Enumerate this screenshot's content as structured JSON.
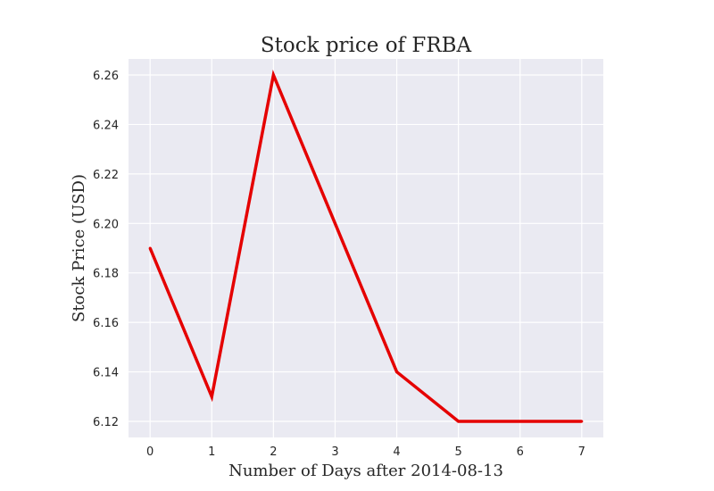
{
  "chart_data": {
    "type": "line",
    "title": "Stock price of FRBA",
    "xlabel": "Number of Days after 2014-08-13",
    "ylabel": "Stock Price (USD)",
    "x": [
      0,
      1,
      2,
      3,
      4,
      5,
      6,
      7
    ],
    "series": [
      {
        "values": [
          6.19,
          6.13,
          6.26,
          6.2,
          6.14,
          6.12,
          6.12,
          6.12
        ],
        "color": "#e50000"
      }
    ],
    "xlim": [
      -0.35,
      7.35
    ],
    "ylim": [
      6.1135,
      6.2665
    ],
    "xticks": [
      0,
      1,
      2,
      3,
      4,
      5,
      6,
      7
    ],
    "yticks": [
      6.12,
      6.14,
      6.16,
      6.18,
      6.2,
      6.22,
      6.24,
      6.26
    ],
    "ytick_labels": [
      "6.12",
      "6.14",
      "6.16",
      "6.18",
      "6.20",
      "6.22",
      "6.24",
      "6.26"
    ],
    "grid": true,
    "background": "#eaeaf2",
    "grid_color": "#ffffff"
  }
}
